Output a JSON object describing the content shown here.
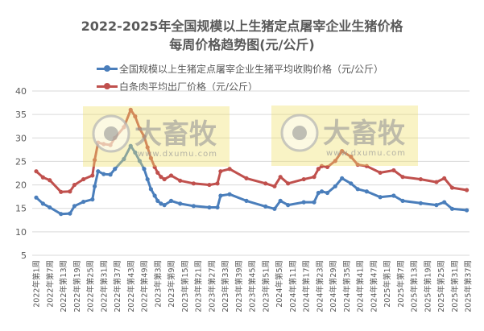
{
  "chart_data": {
    "type": "line",
    "title_line1": "2022-2025年全国规模以上生猪定点屠宰企业生猪价格",
    "title_line2": "每周价格趋势图(元/公斤)",
    "xlabel": "",
    "ylabel": "",
    "ylim": [
      5,
      40
    ],
    "yticks": [
      "5",
      "10",
      "15",
      "20",
      "25",
      "30",
      "35",
      "40"
    ],
    "grid": true,
    "legend_position": "top",
    "x_tick_labels": [
      "2022年第1周",
      "2022年第7周",
      "2022年第13周",
      "2022年第19周",
      "2022年第25周",
      "2022年第31周",
      "2022年第37周",
      "2022年第43周",
      "2022年第49周",
      "2023年第3周",
      "2023年第9周",
      "2023年第15周",
      "2023年第21周",
      "2023年第27周",
      "2023年第33周",
      "2023年第39周",
      "2023年第45周",
      "2023年第51周",
      "2024年第5周",
      "2024年第11周",
      "2024年第17周",
      "2024年第23周",
      "2024年第29周",
      "2024年第35周",
      "2024年第41周",
      "2024年第47周",
      "2025年第1周",
      "2025年第7周",
      "2025年第13周",
      "2025年第19周",
      "2025年第25周",
      "2025年第31周",
      "2025年第37周"
    ],
    "x_tick_step_weeks": 6,
    "x_max_week_index": 192,
    "series": [
      {
        "name": "全国规模以上生猪定点屠宰企业生猪平均收购价格（元/公斤）",
        "color": "#4a7ebb",
        "points": [
          [
            0,
            17.3
          ],
          [
            3,
            16.0
          ],
          [
            6,
            15.2
          ],
          [
            11,
            13.8
          ],
          [
            15,
            13.9
          ],
          [
            17,
            15.5
          ],
          [
            21,
            16.4
          ],
          [
            25,
            16.9
          ],
          [
            26,
            19.7
          ],
          [
            27.5,
            22.9
          ],
          [
            30,
            22.3
          ],
          [
            33,
            22.2
          ],
          [
            35,
            23.4
          ],
          [
            39,
            25.5
          ],
          [
            42,
            28.3
          ],
          [
            44,
            26.9
          ],
          [
            46,
            25.1
          ],
          [
            48,
            23.4
          ],
          [
            49.5,
            21.2
          ],
          [
            51,
            19.1
          ],
          [
            52.7,
            17.7
          ],
          [
            54,
            16.6
          ],
          [
            55.5,
            16.0
          ],
          [
            57,
            15.7
          ],
          [
            60,
            16.6
          ],
          [
            64,
            16.0
          ],
          [
            70,
            15.5
          ],
          [
            77,
            15.2
          ],
          [
            80.6,
            15.2
          ],
          [
            82,
            17.7
          ],
          [
            86,
            18.0
          ],
          [
            93.5,
            16.6
          ],
          [
            102,
            15.4
          ],
          [
            106,
            14.9
          ],
          [
            108.6,
            16.6
          ],
          [
            112,
            15.7
          ],
          [
            119,
            16.3
          ],
          [
            123.6,
            16.3
          ],
          [
            125.5,
            18.3
          ],
          [
            127,
            18.6
          ],
          [
            129.5,
            18.3
          ],
          [
            133,
            19.7
          ],
          [
            136,
            21.4
          ],
          [
            140,
            20.3
          ],
          [
            143,
            19.1
          ],
          [
            147,
            18.6
          ],
          [
            153,
            17.4
          ],
          [
            159,
            17.7
          ],
          [
            163,
            16.6
          ],
          [
            171,
            16.1
          ],
          [
            178,
            15.7
          ],
          [
            181.5,
            16.3
          ],
          [
            185,
            14.9
          ],
          [
            191.5,
            14.6
          ]
        ]
      },
      {
        "name": "白条肉平均出厂价格（元/公斤）",
        "color": "#c0504d",
        "points": [
          [
            0,
            22.9
          ],
          [
            3,
            21.6
          ],
          [
            6,
            21.0
          ],
          [
            11,
            18.5
          ],
          [
            15,
            18.6
          ],
          [
            17,
            20.0
          ],
          [
            21,
            21.2
          ],
          [
            25,
            22.0
          ],
          [
            26,
            25.3
          ],
          [
            27.5,
            29.0
          ],
          [
            30,
            28.7
          ],
          [
            33,
            28.5
          ],
          [
            35,
            30.0
          ],
          [
            39,
            32.3
          ],
          [
            42,
            36.0
          ],
          [
            44,
            34.6
          ],
          [
            46,
            32.0
          ],
          [
            48,
            30.3
          ],
          [
            49.5,
            28.0
          ],
          [
            51,
            25.7
          ],
          [
            52.7,
            23.8
          ],
          [
            54,
            22.6
          ],
          [
            55.5,
            21.7
          ],
          [
            57,
            21.2
          ],
          [
            60,
            22.0
          ],
          [
            64,
            20.9
          ],
          [
            70,
            20.3
          ],
          [
            77,
            20.0
          ],
          [
            80.6,
            20.3
          ],
          [
            82,
            22.9
          ],
          [
            86,
            23.4
          ],
          [
            93.5,
            21.4
          ],
          [
            102,
            20.3
          ],
          [
            106,
            19.7
          ],
          [
            108.6,
            21.7
          ],
          [
            112,
            20.3
          ],
          [
            119,
            21.2
          ],
          [
            123.6,
            21.7
          ],
          [
            125.5,
            23.4
          ],
          [
            127,
            24.0
          ],
          [
            129.5,
            23.8
          ],
          [
            133,
            25.1
          ],
          [
            136,
            27.2
          ],
          [
            140,
            26.0
          ],
          [
            143,
            24.3
          ],
          [
            147,
            24.0
          ],
          [
            153,
            22.6
          ],
          [
            159,
            23.1
          ],
          [
            163,
            21.7
          ],
          [
            171,
            21.2
          ],
          [
            178,
            20.6
          ],
          [
            181.5,
            21.4
          ],
          [
            185,
            19.4
          ],
          [
            191.5,
            18.9
          ]
        ]
      }
    ]
  },
  "watermark": {
    "logo_text": "大畜牧",
    "url_text": "www.dxumu.com"
  }
}
